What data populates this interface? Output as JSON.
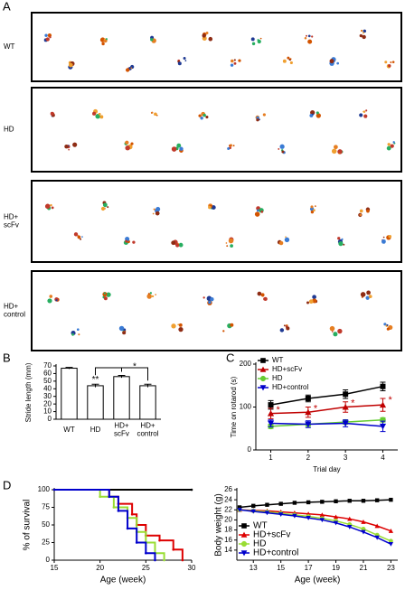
{
  "panel_labels": [
    "A",
    "B",
    "C",
    "D"
  ],
  "footprints": {
    "rows": [
      "WT",
      "HD",
      "HD+\nscFv",
      "HD+\ncontrol"
    ]
  },
  "chart_data": [
    {
      "type": "bar",
      "ylabel": "Stride length (mm)",
      "categories": [
        "WT",
        "HD",
        "HD+\nscFv",
        "HD+\ncontrol"
      ],
      "values": [
        67,
        44,
        56,
        44
      ],
      "errors": [
        1,
        2,
        1.5,
        2
      ],
      "color": "#ffffff",
      "ylim": [
        0,
        70
      ],
      "yticks": [
        0,
        10,
        20,
        30,
        40,
        50,
        60,
        70
      ],
      "grid": false,
      "annotations": [
        "**",
        "*"
      ]
    },
    {
      "type": "line",
      "xlabel": "Trial day",
      "ylabel": "Time on rotarod (s)",
      "x": [
        1,
        2,
        3,
        4
      ],
      "xlim": [
        0.6,
        4.4
      ],
      "xticks": [
        1,
        2,
        3,
        4
      ],
      "ylim": [
        0,
        200
      ],
      "yticks": [
        0,
        100,
        200
      ],
      "grid": false,
      "legend": "upper left",
      "series": [
        {
          "name": "WT",
          "color": "#000000",
          "marker": "square",
          "values": [
            105,
            120,
            130,
            148
          ],
          "errors": [
            10,
            8,
            10,
            10
          ]
        },
        {
          "name": "HD+scFv",
          "color": "#c00000",
          "marker": "triangle",
          "values": [
            85,
            88,
            100,
            105
          ],
          "errors": [
            12,
            12,
            12,
            15
          ]
        },
        {
          "name": "HD",
          "color": "#66cc33",
          "marker": "circle",
          "values": [
            55,
            60,
            65,
            70
          ],
          "errors": [
            5,
            5,
            5,
            5
          ]
        },
        {
          "name": "HD+control",
          "color": "#0000cc",
          "marker": "triangle-down",
          "values": [
            62,
            60,
            62,
            55
          ],
          "errors": [
            8,
            8,
            8,
            12
          ]
        }
      ],
      "annotations": [
        "*",
        "*",
        "*",
        "*"
      ]
    },
    {
      "type": "step",
      "xlabel": "Age (week)",
      "ylabel": "% of survival",
      "xlim": [
        15,
        30
      ],
      "xticks": [
        15,
        20,
        25,
        30
      ],
      "ylim": [
        0,
        100
      ],
      "yticks": [
        0,
        25,
        50,
        75,
        100
      ],
      "grid": false,
      "series": [
        {
          "color": "#000000",
          "x": [
            15,
            30
          ],
          "values": [
            100,
            100
          ]
        },
        {
          "color": "#dd0000",
          "x": [
            15,
            21,
            22,
            23.5,
            24,
            25,
            26.5,
            28,
            29
          ],
          "values": [
            100,
            90,
            80,
            65,
            50,
            35,
            28,
            15,
            0
          ]
        },
        {
          "color": "#99dd33",
          "x": [
            15,
            20,
            21.5,
            23,
            24,
            25,
            26,
            27
          ],
          "values": [
            100,
            90,
            75,
            60,
            40,
            25,
            10,
            0
          ]
        },
        {
          "color": "#0000cc",
          "x": [
            15,
            21,
            22,
            23,
            24,
            25,
            26
          ],
          "values": [
            100,
            90,
            70,
            45,
            25,
            10,
            0
          ]
        }
      ]
    },
    {
      "type": "line",
      "xlabel": "Age (week)",
      "ylabel": "Body weight (g)",
      "x": [
        12,
        13,
        14,
        15,
        16,
        17,
        18,
        19,
        20,
        21,
        22,
        23
      ],
      "xlim": [
        11.8,
        23.5
      ],
      "xticks": [
        13,
        15,
        17,
        19,
        21,
        23
      ],
      "ylim": [
        12,
        26
      ],
      "yticks": [
        14,
        16,
        18,
        20,
        22,
        24,
        26
      ],
      "grid": false,
      "legend": "lower left",
      "series": [
        {
          "name": "WT",
          "color": "#000000",
          "marker": "square",
          "values": [
            22.5,
            22.8,
            23,
            23.2,
            23.4,
            23.5,
            23.6,
            23.7,
            23.8,
            23.8,
            23.9,
            24
          ]
        },
        {
          "name": "HD+scFv",
          "color": "#dd0000",
          "marker": "triangle",
          "values": [
            22,
            21.9,
            21.8,
            21.6,
            21.4,
            21.2,
            21,
            20.6,
            20.2,
            19.6,
            18.8,
            17.8
          ]
        },
        {
          "name": "HD",
          "color": "#99dd33",
          "marker": "circle",
          "values": [
            22,
            21.8,
            21.6,
            21.3,
            21,
            20.7,
            20.3,
            19.8,
            19.1,
            18.2,
            17,
            15.8
          ]
        },
        {
          "name": "HD+control",
          "color": "#0000cc",
          "marker": "triangle-down",
          "values": [
            22,
            21.7,
            21.4,
            21.1,
            20.8,
            20.4,
            20,
            19.4,
            18.6,
            17.6,
            16.5,
            15.2
          ]
        }
      ]
    }
  ]
}
